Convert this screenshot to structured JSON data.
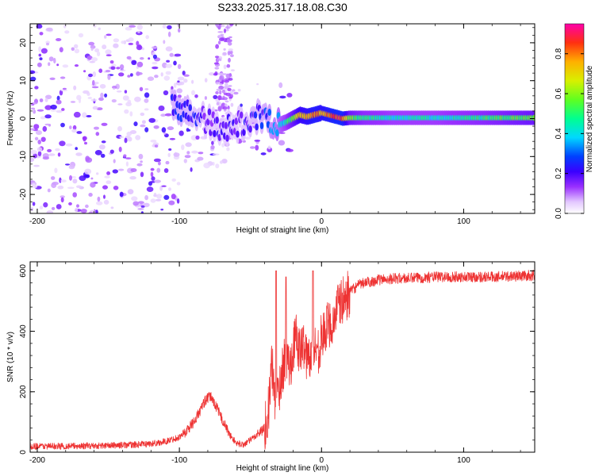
{
  "chart_data": [
    {
      "type": "heatmap",
      "title": "S233.2025.317.18.08.C30",
      "xlabel": "Height of straight line (km)",
      "ylabel": "Frequency (Hz)",
      "xlim": [
        -205,
        150
      ],
      "ylim": [
        -25,
        25
      ],
      "x_ticks": [
        -200,
        -100,
        0,
        100
      ],
      "y_ticks": [
        -20,
        -10,
        0,
        10,
        20
      ],
      "colorbar": {
        "label": "Normalized spectral amplitude",
        "range": [
          0.0,
          0.95
        ],
        "ticks": [
          0.0,
          0.2,
          0.4,
          0.6,
          0.8
        ],
        "tick_labels": [
          "0.0",
          "0.2",
          "0.4",
          "0.6",
          "0.8"
        ]
      },
      "ridge": {
        "x": [
          -100,
          -90,
          -80,
          -70,
          -60,
          -50,
          -40,
          -32,
          -25,
          -20,
          -15,
          -10,
          -5,
          0,
          5,
          10,
          15,
          20,
          30,
          50,
          80,
          110,
          150
        ],
        "y": [
          3,
          1,
          -1,
          -3,
          -2,
          0,
          1,
          -2,
          -1,
          0,
          1,
          0.5,
          1,
          1.5,
          1,
          0.5,
          0,
          0.2,
          0.2,
          0.2,
          0.2,
          0.2,
          0.2
        ],
        "amplitude": [
          0.25,
          0.22,
          0.2,
          0.18,
          0.2,
          0.22,
          0.25,
          0.35,
          0.45,
          0.6,
          0.75,
          0.8,
          0.85,
          0.8,
          0.85,
          0.9,
          0.9,
          0.6,
          0.5,
          0.45,
          0.45,
          0.5,
          0.6
        ]
      }
    },
    {
      "type": "line",
      "xlabel": "Height of straight line (km)",
      "ylabel": "SNR (10 * v/v)",
      "xlim": [
        -205,
        150
      ],
      "ylim": [
        0,
        630
      ],
      "x_ticks": [
        -200,
        -100,
        0,
        100
      ],
      "y_ticks": [
        0,
        200,
        400,
        600
      ],
      "color": "#ee3333",
      "series": [
        {
          "name": "SNR",
          "x": [
            -205,
            -180,
            -150,
            -130,
            -120,
            -110,
            -100,
            -95,
            -90,
            -85,
            -82,
            -78,
            -75,
            -70,
            -65,
            -60,
            -55,
            -50,
            -45,
            -40,
            -37,
            -35,
            -33,
            -30,
            -28,
            -25,
            -22,
            -20,
            -18,
            -15,
            -12,
            -10,
            -8,
            -5,
            -2,
            0,
            3,
            5,
            8,
            10,
            13,
            15,
            20,
            25,
            30,
            40,
            50,
            60,
            80,
            100,
            120,
            150
          ],
          "y": [
            20,
            20,
            22,
            25,
            28,
            35,
            50,
            70,
            100,
            140,
            170,
            185,
            160,
            110,
            60,
            30,
            25,
            40,
            60,
            80,
            150,
            300,
            180,
            200,
            260,
            320,
            280,
            350,
            380,
            330,
            360,
            300,
            330,
            350,
            340,
            380,
            400,
            430,
            420,
            470,
            490,
            500,
            530,
            550,
            560,
            570,
            575,
            575,
            580,
            580,
            580,
            585
          ]
        }
      ],
      "noise_amplitude": 18,
      "spikes": [
        {
          "x": -32,
          "y": 600
        },
        {
          "x": -25,
          "y": 580
        },
        {
          "x": -6,
          "y": 600
        }
      ]
    }
  ]
}
